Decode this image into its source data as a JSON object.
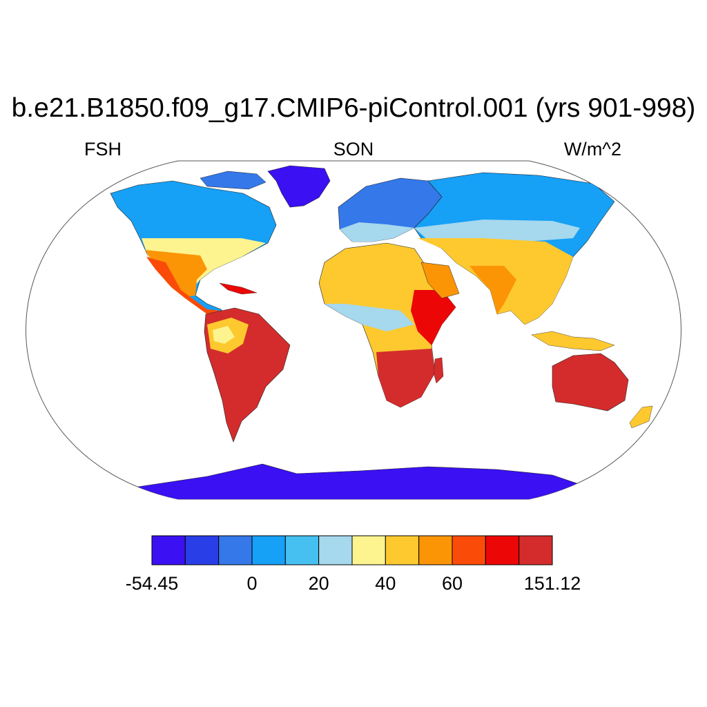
{
  "title": "b.e21.B1850.f09_g17.CMIP6-piControl.001 (yrs 901-998)",
  "left_label": "FSH",
  "center_label": "SON",
  "right_label": "W/m^2",
  "colorbar": {
    "colors": [
      "#3b10f2",
      "#2a3ee8",
      "#3478ea",
      "#16a0f6",
      "#45c0f0",
      "#a6d8ee",
      "#fdf38f",
      "#fdc92f",
      "#fb9506",
      "#fa4c08",
      "#ec0606",
      "#d42c2c"
    ],
    "labels": [
      {
        "text": "-54.45",
        "at_boundary": 0
      },
      {
        "text": "0",
        "at_boundary": 3
      },
      {
        "text": "20",
        "at_boundary": 5
      },
      {
        "text": "40",
        "at_boundary": 7
      },
      {
        "text": "60",
        "at_boundary": 9
      },
      {
        "text": "151.12",
        "at_boundary": 12
      }
    ]
  },
  "map": {
    "projection": "robinson",
    "ocean_color": "#ffffff",
    "outline_color": "#555555"
  }
}
